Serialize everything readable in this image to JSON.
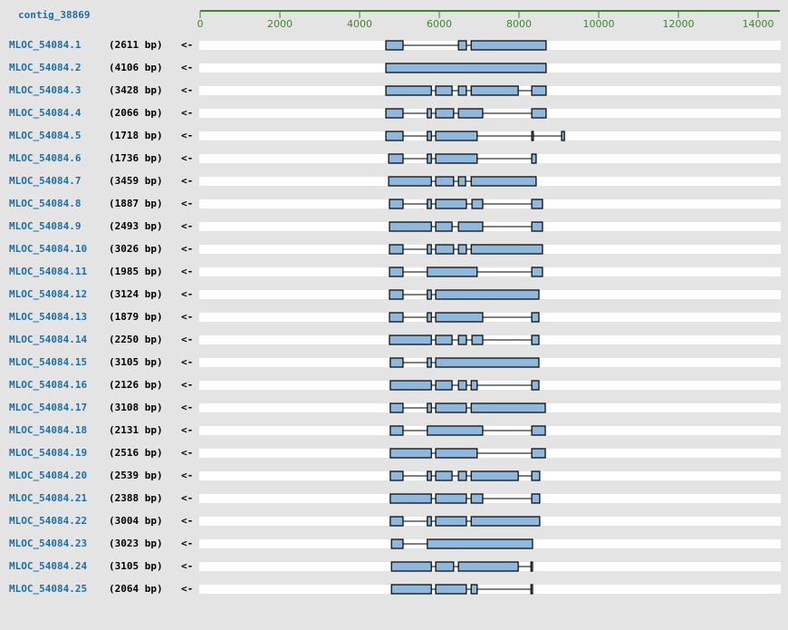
{
  "contig": "contig_38869",
  "axis": {
    "xlim": [
      0,
      14500
    ],
    "xticks": [
      0,
      2000,
      4000,
      6000,
      8000,
      10000,
      12000,
      14000
    ]
  },
  "transcripts": [
    {
      "name": "MLOC_54084.1",
      "length": "(2611 bp)",
      "strand": "<-",
      "exons": [
        [
          4660,
          5090
        ],
        [
          6480,
          6680
        ],
        [
          6800,
          8680
        ]
      ]
    },
    {
      "name": "MLOC_54084.2",
      "length": "(4106 bp)",
      "strand": "<-",
      "exons": [
        [
          4660,
          8680
        ]
      ]
    },
    {
      "name": "MLOC_54084.3",
      "length": "(3428 bp)",
      "strand": "<-",
      "exons": [
        [
          4660,
          5800
        ],
        [
          5910,
          6320
        ],
        [
          6480,
          6680
        ],
        [
          6800,
          7980
        ],
        [
          8320,
          8680
        ]
      ]
    },
    {
      "name": "MLOC_54084.4",
      "length": "(2066 bp)",
      "strand": "<-",
      "exons": [
        [
          4660,
          5090
        ],
        [
          5700,
          5800
        ],
        [
          5910,
          6360
        ],
        [
          6480,
          7090
        ],
        [
          8320,
          8680
        ]
      ]
    },
    {
      "name": "MLOC_54084.5",
      "length": "(1718 bp)",
      "strand": "<-",
      "exons": [
        [
          4660,
          5090
        ],
        [
          5700,
          5800
        ],
        [
          5910,
          6950
        ],
        [
          8320,
          8360
        ],
        [
          9070,
          9140
        ]
      ]
    },
    {
      "name": "MLOC_54084.6",
      "length": "(1736 bp)",
      "strand": "<-",
      "exons": [
        [
          4730,
          5090
        ],
        [
          5700,
          5800
        ],
        [
          5910,
          6950
        ],
        [
          8320,
          8430
        ]
      ]
    },
    {
      "name": "MLOC_54084.7",
      "length": "(3459 bp)",
      "strand": "<-",
      "exons": [
        [
          4730,
          5800
        ],
        [
          5910,
          6360
        ],
        [
          6480,
          6660
        ],
        [
          6800,
          8430
        ]
      ]
    },
    {
      "name": "MLOC_54084.8",
      "length": "(1887 bp)",
      "strand": "<-",
      "exons": [
        [
          4750,
          5090
        ],
        [
          5700,
          5800
        ],
        [
          5910,
          6680
        ],
        [
          6820,
          7090
        ],
        [
          8320,
          8590
        ]
      ]
    },
    {
      "name": "MLOC_54084.9",
      "length": "(2493 bp)",
      "strand": "<-",
      "exons": [
        [
          4750,
          5800
        ],
        [
          5910,
          6320
        ],
        [
          6480,
          7090
        ],
        [
          8320,
          8590
        ]
      ]
    },
    {
      "name": "MLOC_54084.10",
      "length": "(3026 bp)",
      "strand": "<-",
      "exons": [
        [
          4750,
          5090
        ],
        [
          5700,
          5800
        ],
        [
          5910,
          6360
        ],
        [
          6480,
          6680
        ],
        [
          6800,
          8590
        ]
      ]
    },
    {
      "name": "MLOC_54084.11",
      "length": "(1985 bp)",
      "strand": "<-",
      "exons": [
        [
          4750,
          5090
        ],
        [
          5700,
          6950
        ],
        [
          8320,
          8590
        ]
      ]
    },
    {
      "name": "MLOC_54084.12",
      "length": "(3124 bp)",
      "strand": "<-",
      "exons": [
        [
          4750,
          5090
        ],
        [
          5700,
          5800
        ],
        [
          5910,
          8500
        ]
      ]
    },
    {
      "name": "MLOC_54084.13",
      "length": "(1879 bp)",
      "strand": "<-",
      "exons": [
        [
          4750,
          5090
        ],
        [
          5700,
          5800
        ],
        [
          5910,
          7090
        ],
        [
          8320,
          8500
        ]
      ]
    },
    {
      "name": "MLOC_54084.14",
      "length": "(2250 bp)",
      "strand": "<-",
      "exons": [
        [
          4750,
          5800
        ],
        [
          5910,
          6320
        ],
        [
          6480,
          6680
        ],
        [
          6820,
          7090
        ],
        [
          8320,
          8500
        ]
      ]
    },
    {
      "name": "MLOC_54084.15",
      "length": "(3105 bp)",
      "strand": "<-",
      "exons": [
        [
          4770,
          5090
        ],
        [
          5700,
          5800
        ],
        [
          5910,
          8500
        ]
      ]
    },
    {
      "name": "MLOC_54084.16",
      "length": "(2126 bp)",
      "strand": "<-",
      "exons": [
        [
          4770,
          5800
        ],
        [
          5910,
          6320
        ],
        [
          6480,
          6680
        ],
        [
          6800,
          6950
        ],
        [
          8320,
          8500
        ]
      ]
    },
    {
      "name": "MLOC_54084.17",
      "length": "(3108 bp)",
      "strand": "<-",
      "exons": [
        [
          4770,
          5090
        ],
        [
          5700,
          5800
        ],
        [
          5910,
          6680
        ],
        [
          6800,
          8660
        ]
      ]
    },
    {
      "name": "MLOC_54084.18",
      "length": "(2131 bp)",
      "strand": "<-",
      "exons": [
        [
          4770,
          5090
        ],
        [
          5700,
          7090
        ],
        [
          8320,
          8660
        ]
      ]
    },
    {
      "name": "MLOC_54084.19",
      "length": "(2516 bp)",
      "strand": "<-",
      "exons": [
        [
          4770,
          5800
        ],
        [
          5910,
          6950
        ],
        [
          8320,
          8660
        ]
      ]
    },
    {
      "name": "MLOC_54084.20",
      "length": "(2539 bp)",
      "strand": "<-",
      "exons": [
        [
          4770,
          5090
        ],
        [
          5700,
          5800
        ],
        [
          5910,
          6320
        ],
        [
          6480,
          6680
        ],
        [
          6800,
          7980
        ],
        [
          8320,
          8520
        ]
      ]
    },
    {
      "name": "MLOC_54084.21",
      "length": "(2388 bp)",
      "strand": "<-",
      "exons": [
        [
          4770,
          5800
        ],
        [
          5910,
          6680
        ],
        [
          6800,
          7090
        ],
        [
          8320,
          8520
        ]
      ]
    },
    {
      "name": "MLOC_54084.22",
      "length": "(3004 bp)",
      "strand": "<-",
      "exons": [
        [
          4770,
          5090
        ],
        [
          5700,
          5800
        ],
        [
          5910,
          6680
        ],
        [
          6800,
          8520
        ]
      ]
    },
    {
      "name": "MLOC_54084.23",
      "length": "(3023 bp)",
      "strand": "<-",
      "exons": [
        [
          4800,
          5090
        ],
        [
          5700,
          8340
        ]
      ]
    },
    {
      "name": "MLOC_54084.24",
      "length": "(3105 bp)",
      "strand": "<-",
      "exons": [
        [
          4800,
          5800
        ],
        [
          5910,
          6360
        ],
        [
          6480,
          7980
        ],
        [
          8300,
          8340
        ]
      ]
    },
    {
      "name": "MLOC_54084.25",
      "length": "(2064 bp)",
      "strand": "<-",
      "exons": [
        [
          4800,
          5800
        ],
        [
          5910,
          6680
        ],
        [
          6800,
          6950
        ],
        [
          8300,
          8340
        ]
      ]
    }
  ]
}
